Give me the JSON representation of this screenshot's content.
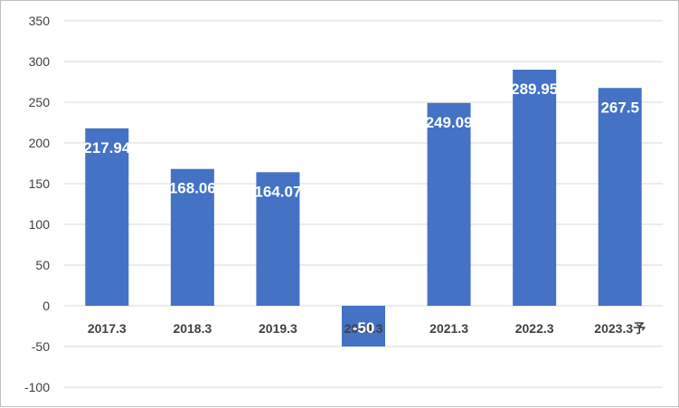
{
  "chart_data": {
    "type": "bar",
    "categories": [
      "2017.3",
      "2018.3",
      "2019.3",
      "2020.3",
      "2021.3",
      "2022.3",
      "2023.3予"
    ],
    "values": [
      217.94,
      168.06,
      164.07,
      -50,
      249.09,
      289.95,
      267.5
    ],
    "data_labels": [
      "217.94",
      "168.06",
      "164.07",
      "-50",
      "249.09",
      "289.95",
      "267.5"
    ],
    "yticks": [
      350,
      300,
      250,
      200,
      150,
      100,
      50,
      0,
      -50,
      -100
    ],
    "ylim": [
      -100,
      350
    ],
    "grid": true,
    "legend": "none",
    "colors": {
      "bar": "#4472c4",
      "grid": "#d9d9d9",
      "text": "#404040",
      "label": "#ffffff"
    }
  }
}
